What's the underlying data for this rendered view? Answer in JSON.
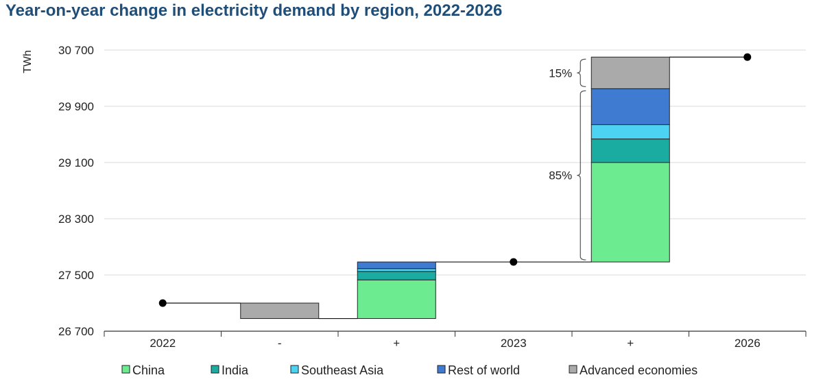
{
  "chart_data": {
    "type": "bar",
    "subtype": "waterfall",
    "title": "Year-on-year change in electricity demand by region, 2022-2026",
    "ylabel": "TWh",
    "xlabel": "",
    "ylim": [
      26700,
      30900
    ],
    "yticks": [
      26700,
      27500,
      28300,
      29100,
      29900,
      30700
    ],
    "ytick_labels": [
      "26 700",
      "27 500",
      "28 300",
      "29 100",
      "29 900",
      "30 700"
    ],
    "grid": true,
    "legend_position": "bottom",
    "categories": [
      "2022",
      "-",
      "+",
      "2023",
      "+",
      "2026"
    ],
    "totals": [
      {
        "category_index": 0,
        "value": 27100
      },
      {
        "category_index": 3,
        "value": 27685
      },
      {
        "category_index": 5,
        "value": 30600
      }
    ],
    "series": [
      {
        "name": "China",
        "color": "#6ceb91"
      },
      {
        "name": "India",
        "color": "#1aaca0"
      },
      {
        "name": "Southeast Asia",
        "color": "#4cd3f4"
      },
      {
        "name": "Rest of world",
        "color": "#3f7bd1"
      },
      {
        "name": "Advanced economies",
        "color": "#aaaaaa"
      }
    ],
    "steps": [
      {
        "category_index": 1,
        "segments": [
          {
            "series": "Advanced economies",
            "from": 27100,
            "to": 26880
          }
        ]
      },
      {
        "category_index": 2,
        "segments": [
          {
            "series": "China",
            "from": 26880,
            "to": 27430
          },
          {
            "series": "India",
            "from": 27430,
            "to": 27550
          },
          {
            "series": "Southeast Asia",
            "from": 27550,
            "to": 27590
          },
          {
            "series": "Rest of world",
            "from": 27590,
            "to": 27685
          }
        ]
      },
      {
        "category_index": 4,
        "segments": [
          {
            "series": "China",
            "from": 27685,
            "to": 29100
          },
          {
            "series": "India",
            "from": 29100,
            "to": 29435
          },
          {
            "series": "Southeast Asia",
            "from": 29435,
            "to": 29640
          },
          {
            "series": "Rest of world",
            "from": 29640,
            "to": 30150
          },
          {
            "series": "Advanced economies",
            "from": 30150,
            "to": 30600
          }
        ]
      }
    ],
    "annotations": [
      {
        "text": "15%",
        "from": 30150,
        "to": 30600
      },
      {
        "text": "85%",
        "from": 27685,
        "to": 30150
      }
    ]
  }
}
